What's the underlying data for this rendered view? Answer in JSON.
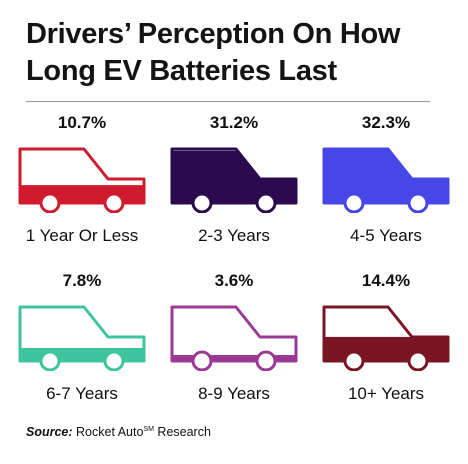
{
  "title_line1": "Drivers’ Perception On How",
  "title_line2": "Long EV Batteries Last",
  "source": {
    "label": "Source:",
    "text_before": "Rocket Auto",
    "superscript": "SM",
    "text_after": "Research"
  },
  "chart_data": {
    "type": "pictogram",
    "title": "Drivers’ Perception On How Long EV Batteries Last",
    "categories": [
      "1 Year Or Less",
      "2-3 Years",
      "4-5 Years",
      "6-7 Years",
      "8-9 Years",
      "10+ Years"
    ],
    "values": [
      10.7,
      31.2,
      32.3,
      7.8,
      3.6,
      14.4
    ],
    "value_labels": [
      "10.7%",
      "31.2%",
      "32.3%",
      "7.8%",
      "3.6%",
      "14.4%"
    ],
    "unit": "%",
    "colors": [
      "#d01a2e",
      "#2b0a4d",
      "#4747e8",
      "#3fc4a0",
      "#9b3a95",
      "#7a1524"
    ]
  }
}
